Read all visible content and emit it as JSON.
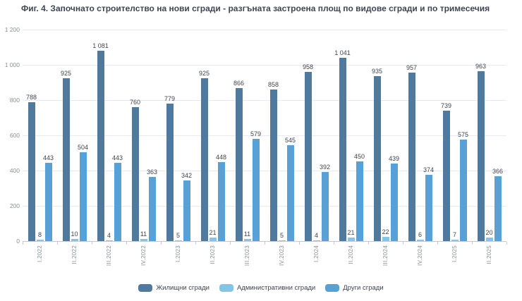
{
  "chart_data": {
    "type": "bar",
    "title": "Фиг. 4. Започнато строителство на нови сгради - разгъната застроена площ по видове сгради и по тримесечия",
    "categories": [
      "I.2022",
      "II.2022",
      "III.2022",
      "IV.2022",
      "I.2023",
      "II.2023",
      "III.2023",
      "IV.2023",
      "I.2024",
      "II.2024",
      "III.2024",
      "IV.2024",
      "I.2025",
      "II.2025"
    ],
    "series": [
      {
        "name": "Жилищни сгради",
        "slug": "residential-buildings",
        "color": "#4F7A9D",
        "values": [
          788,
          925,
          1081,
          760,
          779,
          925,
          866,
          858,
          958,
          1041,
          935,
          957,
          739,
          963
        ]
      },
      {
        "name": "Административни сгради",
        "slug": "administrative-buildings",
        "color": "#82C5E8",
        "values": [
          8,
          10,
          4,
          11,
          5,
          21,
          11,
          5,
          4,
          21,
          22,
          6,
          7,
          20
        ]
      },
      {
        "name": "Други сгради",
        "slug": "other-buildings",
        "color": "#58A1D6",
        "values": [
          443,
          504,
          443,
          363,
          342,
          448,
          579,
          545,
          392,
          450,
          439,
          374,
          575,
          366
        ]
      }
    ],
    "ylim": [
      0,
      1200
    ],
    "yticks": [
      0,
      200,
      400,
      600,
      800,
      1000,
      1200
    ],
    "grid": true,
    "legend_position": "bottom",
    "data_labels": true,
    "colors": {
      "grid": "#E7EAF1",
      "axis": "#C7CBD1",
      "tick_label": "#8A9098",
      "data_label": "#3F444C",
      "title": "#3E4651"
    }
  }
}
